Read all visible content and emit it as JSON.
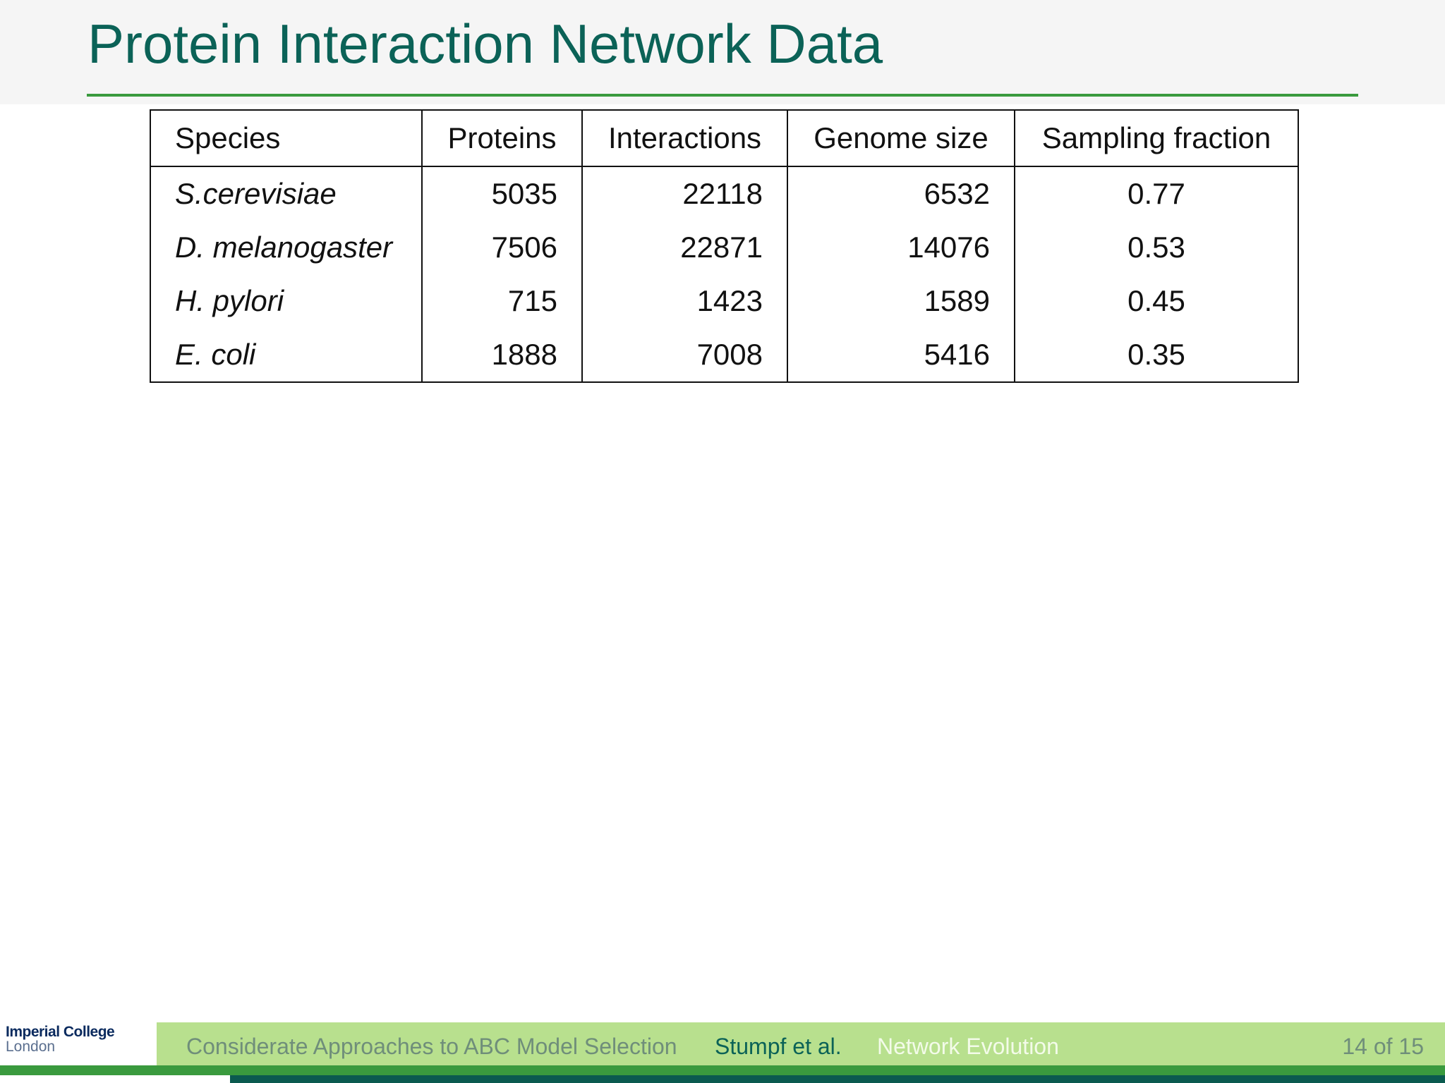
{
  "slide": {
    "title": "Protein Interaction Network Data"
  },
  "table": {
    "headers": [
      "Species",
      "Proteins",
      "Interactions",
      "Genome size",
      "Sampling fraction"
    ],
    "rows": [
      [
        "S.cerevisiae",
        "5035",
        "22118",
        "6532",
        "0.77"
      ],
      [
        "D. melanogaster",
        "7506",
        "22871",
        "14076",
        "0.53"
      ],
      [
        "H. pylori",
        "715",
        "1423",
        "1589",
        "0.45"
      ],
      [
        "E. coli",
        "1888",
        "7008",
        "5416",
        "0.35"
      ]
    ]
  },
  "footer": {
    "logo_line1": "Imperial College",
    "logo_line2": "London",
    "talk_title": "Considerate Approaches to ABC Model Selection",
    "author": "Stumpf et al.",
    "section": "Network Evolution",
    "page": "14 of 15"
  },
  "colors": {
    "title": "#0b6257",
    "accent_green": "#3a9a3e",
    "footer_bar": "#b8e08e",
    "dark_green": "#0b5a4f"
  }
}
